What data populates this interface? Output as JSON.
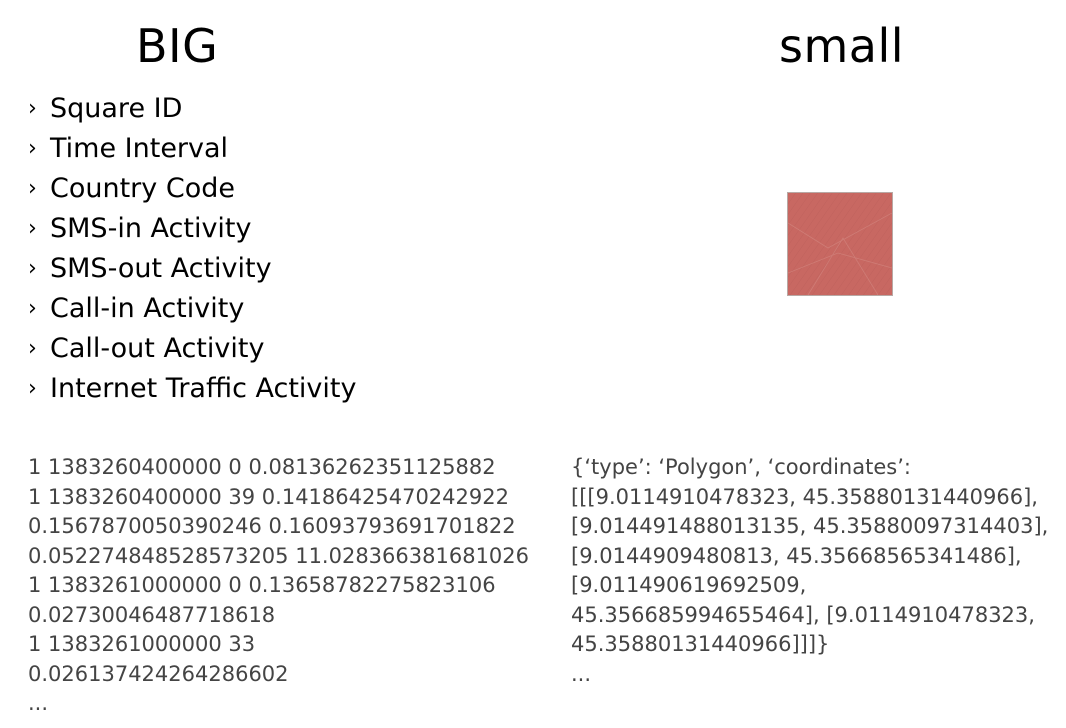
{
  "left_column": {
    "title": "BIG",
    "items": [
      "Square ID",
      "Time Interval",
      "Country Code",
      "SMS-in Activity",
      "SMS-out Activity",
      "Call-in Activity",
      "Call-out Activity",
      "Internet Traffic Activity"
    ],
    "bullet_glyph": "›",
    "data_lines": [
      "1  1383260400000  0  0.08136262351125882",
      "1  1383260400000  39  0.14186425470242922",
      "0.1567870050390246  0.16093793691701822",
      "0.052274848528573205  11.028366381681026",
      "1  1383261000000  0  0.13658782275823106",
      "0.02730046487718618",
      "1  1383261000000  33",
      "0.026137424264286602",
      "..."
    ]
  },
  "right_column": {
    "title": "small",
    "square_color": "#c86862",
    "data_lines": [
      "{‘type’: ‘Polygon’, ‘coordinates’:",
      "[[[9.0114910478323, 45.35880131440966],",
      "[9.014491488013135, 45.35880097314403],",
      "[9.0144909480813, 45.35668565341486],",
      "[9.011490619692509,",
      "45.356685994655464], [9.0114910478323,",
      "45.35880131440966]]]}",
      "..."
    ]
  }
}
